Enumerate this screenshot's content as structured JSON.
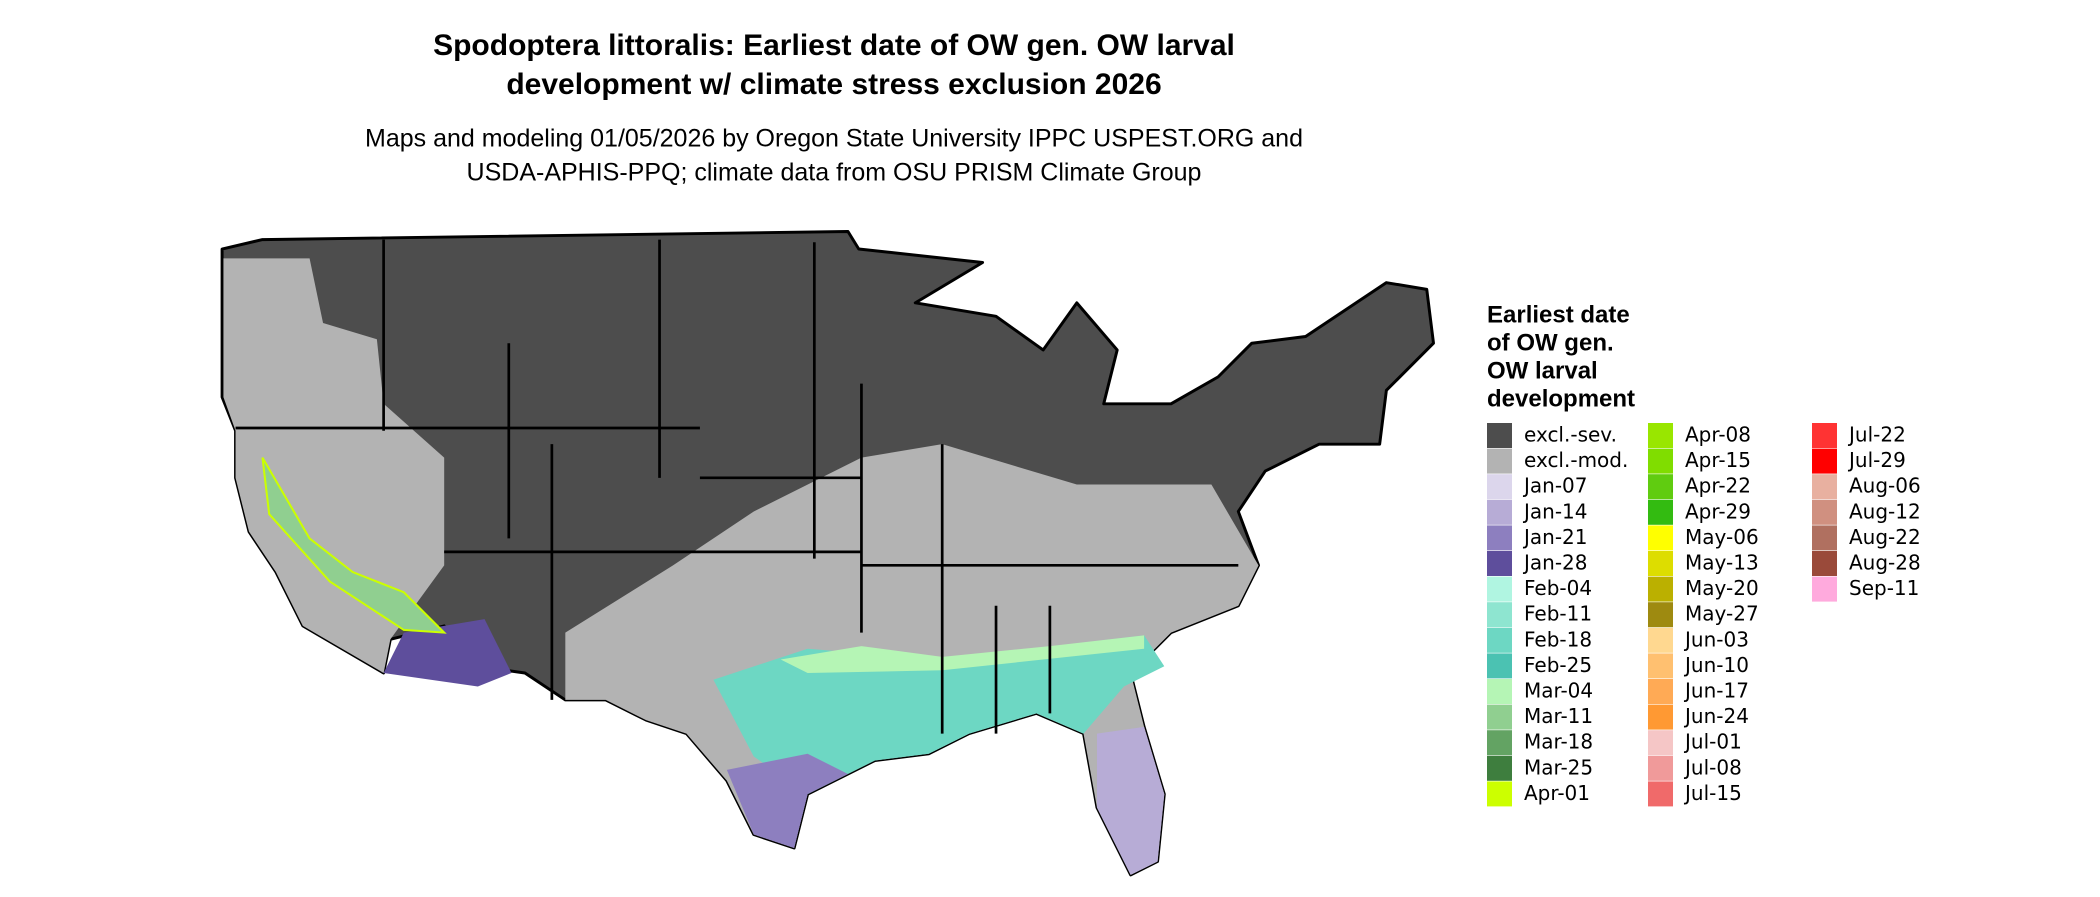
{
  "title": [
    "Spodoptera littoralis: Earliest date of OW gen. OW larval",
    "development w/ climate stress exclusion 2026"
  ],
  "subtitle": [
    "Maps and modeling 01/05/2026 by Oregon State University IPPC USPEST.ORG and",
    "USDA-APHIS-PPQ; climate data from OSU PRISM Climate Group"
  ],
  "legend": {
    "title": [
      "Earliest date",
      "of OW gen.",
      "OW larval",
      "development"
    ],
    "items": [
      {
        "label": "excl.-sev.",
        "color": "#4d4d4d"
      },
      {
        "label": "excl.-mod.",
        "color": "#b3b3b3"
      },
      {
        "label": "Jan-07",
        "color": "#dcd6ec"
      },
      {
        "label": "Jan-14",
        "color": "#b7acd6"
      },
      {
        "label": "Jan-21",
        "color": "#8d7fbf"
      },
      {
        "label": "Jan-28",
        "color": "#5e4e9c"
      },
      {
        "label": "Feb-04",
        "color": "#b0f5e1"
      },
      {
        "label": "Feb-11",
        "color": "#8ee5d0"
      },
      {
        "label": "Feb-18",
        "color": "#6dd7c3"
      },
      {
        "label": "Feb-25",
        "color": "#4bc2b2"
      },
      {
        "label": "Mar-04",
        "color": "#b5f5b5"
      },
      {
        "label": "Mar-11",
        "color": "#90cf90"
      },
      {
        "label": "Mar-18",
        "color": "#63a363"
      },
      {
        "label": "Mar-25",
        "color": "#3e7e3e"
      },
      {
        "label": "Apr-01",
        "color": "#ccff00"
      },
      {
        "label": "Apr-08",
        "color": "#99e600"
      },
      {
        "label": "Apr-15",
        "color": "#80dd00"
      },
      {
        "label": "Apr-22",
        "color": "#60cc10"
      },
      {
        "label": "Apr-29",
        "color": "#33bb11"
      },
      {
        "label": "May-06",
        "color": "#ffff00"
      },
      {
        "label": "May-13",
        "color": "#dddd00"
      },
      {
        "label": "May-20",
        "color": "#bbb000"
      },
      {
        "label": "May-27",
        "color": "#9e8a10"
      },
      {
        "label": "Jun-03",
        "color": "#ffd890"
      },
      {
        "label": "Jun-10",
        "color": "#ffc070"
      },
      {
        "label": "Jun-17",
        "color": "#ffaa55"
      },
      {
        "label": "Jun-24",
        "color": "#ff9933"
      },
      {
        "label": "Jul-01",
        "color": "#f5c6c6"
      },
      {
        "label": "Jul-08",
        "color": "#f09a9a"
      },
      {
        "label": "Jul-15",
        "color": "#f06a6a"
      },
      {
        "label": "Jul-22",
        "color": "#ff3333"
      },
      {
        "label": "Jul-29",
        "color": "#ff0000"
      },
      {
        "label": "Aug-06",
        "color": "#e8b0a0"
      },
      {
        "label": "Aug-12",
        "color": "#d09080"
      },
      {
        "label": "Aug-22",
        "color": "#b07060"
      },
      {
        "label": "Aug-28",
        "color": "#9a4a3a"
      },
      {
        "label": "Sep-11",
        "color": "#ffaadd"
      }
    ]
  }
}
